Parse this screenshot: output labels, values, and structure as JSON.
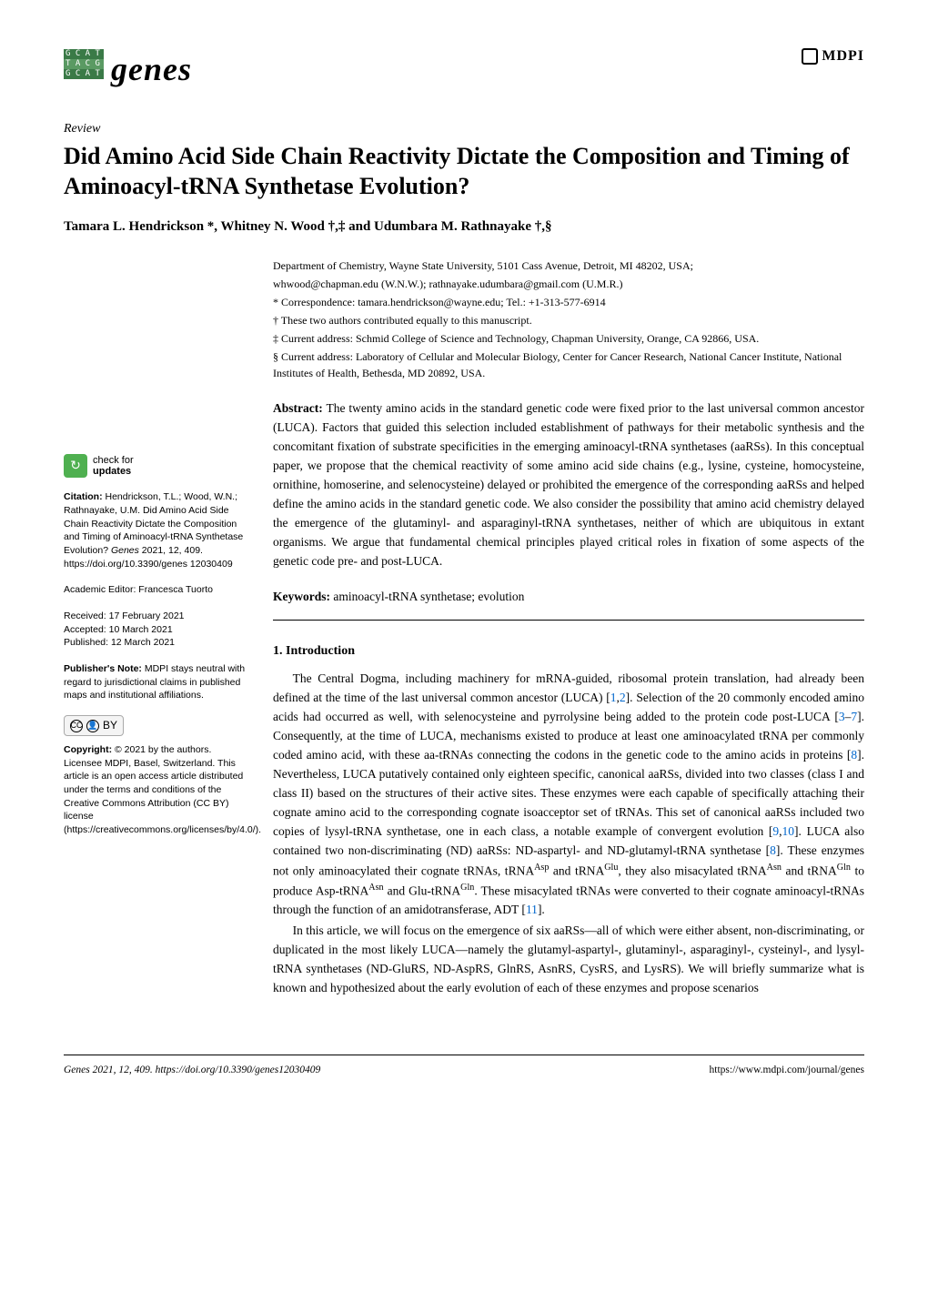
{
  "journal": {
    "logo_rows": [
      "G C A T",
      "T A C G",
      "G C A T"
    ],
    "name": "genes",
    "publisher_logo": "MDPI"
  },
  "article": {
    "type": "Review",
    "title": "Did Amino Acid Side Chain Reactivity Dictate the Composition and Timing of Aminoacyl-tRNA Synthetase Evolution?",
    "authors": "Tamara L. Hendrickson *, Whitney N. Wood †,‡ and Udumbara M. Rathnayake †,§"
  },
  "affiliations": {
    "dept": "Department of Chemistry, Wayne State University, 5101 Cass Avenue, Detroit, MI 48202, USA;",
    "emails": "whwood@chapman.edu (W.N.W.); rathnayake.udumbara@gmail.com (U.M.R.)",
    "corr": "* Correspondence: tamara.hendrickson@wayne.edu; Tel.: +1-313-577-6914",
    "dagger": "† These two authors contributed equally to this manuscript.",
    "ddagger": "‡ Current address: Schmid College of Science and Technology, Chapman University, Orange, CA 92866, USA.",
    "section": "§ Current address: Laboratory of Cellular and Molecular Biology, Center for Cancer Research, National Cancer Institute, National Institutes of Health, Bethesda, MD 20892, USA."
  },
  "abstract": {
    "label": "Abstract:",
    "text": "The twenty amino acids in the standard genetic code were fixed prior to the last universal common ancestor (LUCA). Factors that guided this selection included establishment of pathways for their metabolic synthesis and the concomitant fixation of substrate specificities in the emerging aminoacyl-tRNA synthetases (aaRSs). In this conceptual paper, we propose that the chemical reactivity of some amino acid side chains (e.g., lysine, cysteine, homocysteine, ornithine, homoserine, and selenocysteine) delayed or prohibited the emergence of the corresponding aaRSs and helped define the amino acids in the standard genetic code. We also consider the possibility that amino acid chemistry delayed the emergence of the glutaminyl- and asparaginyl-tRNA synthetases, neither of which are ubiquitous in extant organisms. We argue that fundamental chemical principles played critical roles in fixation of some aspects of the genetic code pre- and post-LUCA."
  },
  "keywords": {
    "label": "Keywords:",
    "text": "aminoacyl-tRNA synthetase; evolution"
  },
  "section1": {
    "heading": "1. Introduction",
    "p1_a": "The Central Dogma, including machinery for mRNA-guided, ribosomal protein translation, had already been defined at the time of the last universal common ancestor (LUCA) [",
    "p1_ref1": "1",
    "p1_b": ",",
    "p1_ref2": "2",
    "p1_c": "]. Selection of the 20 commonly encoded amino acids had occurred as well, with selenocysteine and pyrrolysine being added to the protein code post-LUCA [",
    "p1_ref3": "3",
    "p1_d": "–",
    "p1_ref4": "7",
    "p1_e": "]. Consequently, at the time of LUCA, mechanisms existed to produce at least one aminoacylated tRNA per commonly coded amino acid, with these aa-tRNAs connecting the codons in the genetic code to the amino acids in proteins [",
    "p1_ref5": "8",
    "p1_f": "]. Nevertheless, LUCA putatively contained only eighteen specific, canonical aaRSs, divided into two classes (class I and class II) based on the structures of their active sites. These enzymes were each capable of specifically attaching their cognate amino acid to the corresponding cognate isoacceptor set of tRNAs. This set of canonical aaRSs included two copies of lysyl-tRNA synthetase, one in each class, a notable example of convergent evolution [",
    "p1_ref6": "9",
    "p1_g": ",",
    "p1_ref7": "10",
    "p1_h": "]. LUCA also contained two non-discriminating (ND) aaRSs: ND-aspartyl- and ND-glutamyl-tRNA synthetase [",
    "p1_ref8": "8",
    "p1_i": "]. These enzymes not only aminoacylated their cognate tRNAs, tRNA",
    "p1_sup1": "Asp",
    "p1_j": " and tRNA",
    "p1_sup2": "Glu",
    "p1_k": ", they also misacylated tRNA",
    "p1_sup3": "Asn",
    "p1_l": " and tRNA",
    "p1_sup4": "Gln",
    "p1_m": " to produce Asp-tRNA",
    "p1_sup5": "Asn",
    "p1_n": " and Glu-tRNA",
    "p1_sup6": "Gln",
    "p1_o": ". These misacylated tRNAs were converted to their cognate aminoacyl-tRNAs through the function of an amidotransferase, ADT [",
    "p1_ref9": "11",
    "p1_p": "].",
    "p2": "In this article, we will focus on the emergence of six aaRSs—all of which were either absent, non-discriminating, or duplicated in the most likely LUCA—namely the glutamyl-aspartyl-, glutaminyl-, asparaginyl-, cysteinyl-, and lysyl-tRNA synthetases (ND-GluRS, ND-AspRS, GlnRS, AsnRS, CysRS, and LysRS). We will briefly summarize what is known and hypothesized about the early evolution of each of these enzymes and propose scenarios"
  },
  "sidebar": {
    "check_updates_line1": "check for",
    "check_updates_line2": "updates",
    "citation_label": "Citation:",
    "citation_text": " Hendrickson, T.L.; Wood, W.N.; Rathnayake, U.M. Did Amino Acid Side Chain Reactivity Dictate the Composition and Timing of Aminoacyl-tRNA Synthetase Evolution? ",
    "citation_journal": "Genes",
    "citation_rest": " 2021, 12, 409. https://doi.org/10.3390/genes 12030409",
    "editor": "Academic Editor: Francesca Tuorto",
    "received": "Received: 17 February 2021",
    "accepted": "Accepted: 10 March 2021",
    "published": "Published: 12 March 2021",
    "pubnote_label": "Publisher's Note:",
    "pubnote_text": " MDPI stays neutral with regard to jurisdictional claims in published maps and institutional affiliations.",
    "cc_label": "CC",
    "by_label": "BY",
    "copyright_label": "Copyright:",
    "copyright_text": " © 2021 by the authors. Licensee MDPI, Basel, Switzerland. This article is an open access article distributed under the terms and conditions of the Creative Commons Attribution (CC BY) license (https://creativecommons.org/licenses/by/4.0/)."
  },
  "footer": {
    "left": "Genes 2021, 12, 409. https://doi.org/10.3390/genes12030409",
    "right": "https://www.mdpi.com/journal/genes"
  },
  "colors": {
    "link": "#0066cc",
    "logo_green_dark": "#3a7a47",
    "logo_green_light": "#5a9a63",
    "check_green": "#4fb050"
  }
}
